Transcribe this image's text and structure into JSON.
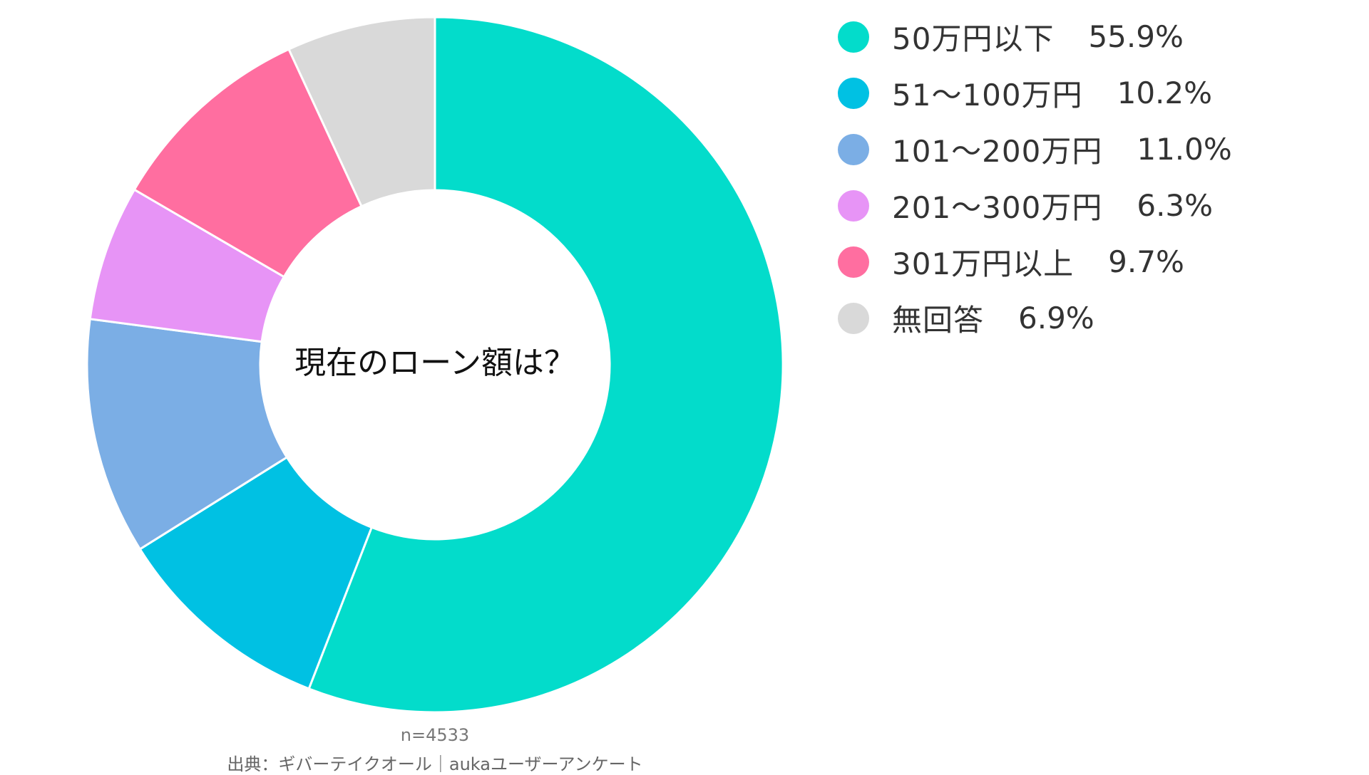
{
  "chart_data": {
    "type": "donut",
    "title": "現在のローン額は？",
    "slices": [
      {
        "label": "50万円以下",
        "value": 55.9,
        "value_label": "55.9%",
        "color": "#03DCCB"
      },
      {
        "label": "51〜100万円",
        "value": 10.2,
        "value_label": "10.2%",
        "color": "#00C1E3"
      },
      {
        "label": "101〜200万円",
        "value": 11.0,
        "value_label": "11.0%",
        "color": "#7BAEE5"
      },
      {
        "label": "201〜300万円",
        "value": 6.3,
        "value_label": "6.3%",
        "color": "#E794F6"
      },
      {
        "label": "301万円以上",
        "value": 9.7,
        "value_label": "9.7%",
        "color": "#FF6EA0"
      },
      {
        "label": "無回答",
        "value": 6.9,
        "value_label": "6.9%",
        "color": "#D9D9D9"
      }
    ],
    "legend_position": "top-right",
    "sample_size": "n=4533",
    "source": "出典：ギバーテイクオール｜aukaユーザーアンケート"
  }
}
